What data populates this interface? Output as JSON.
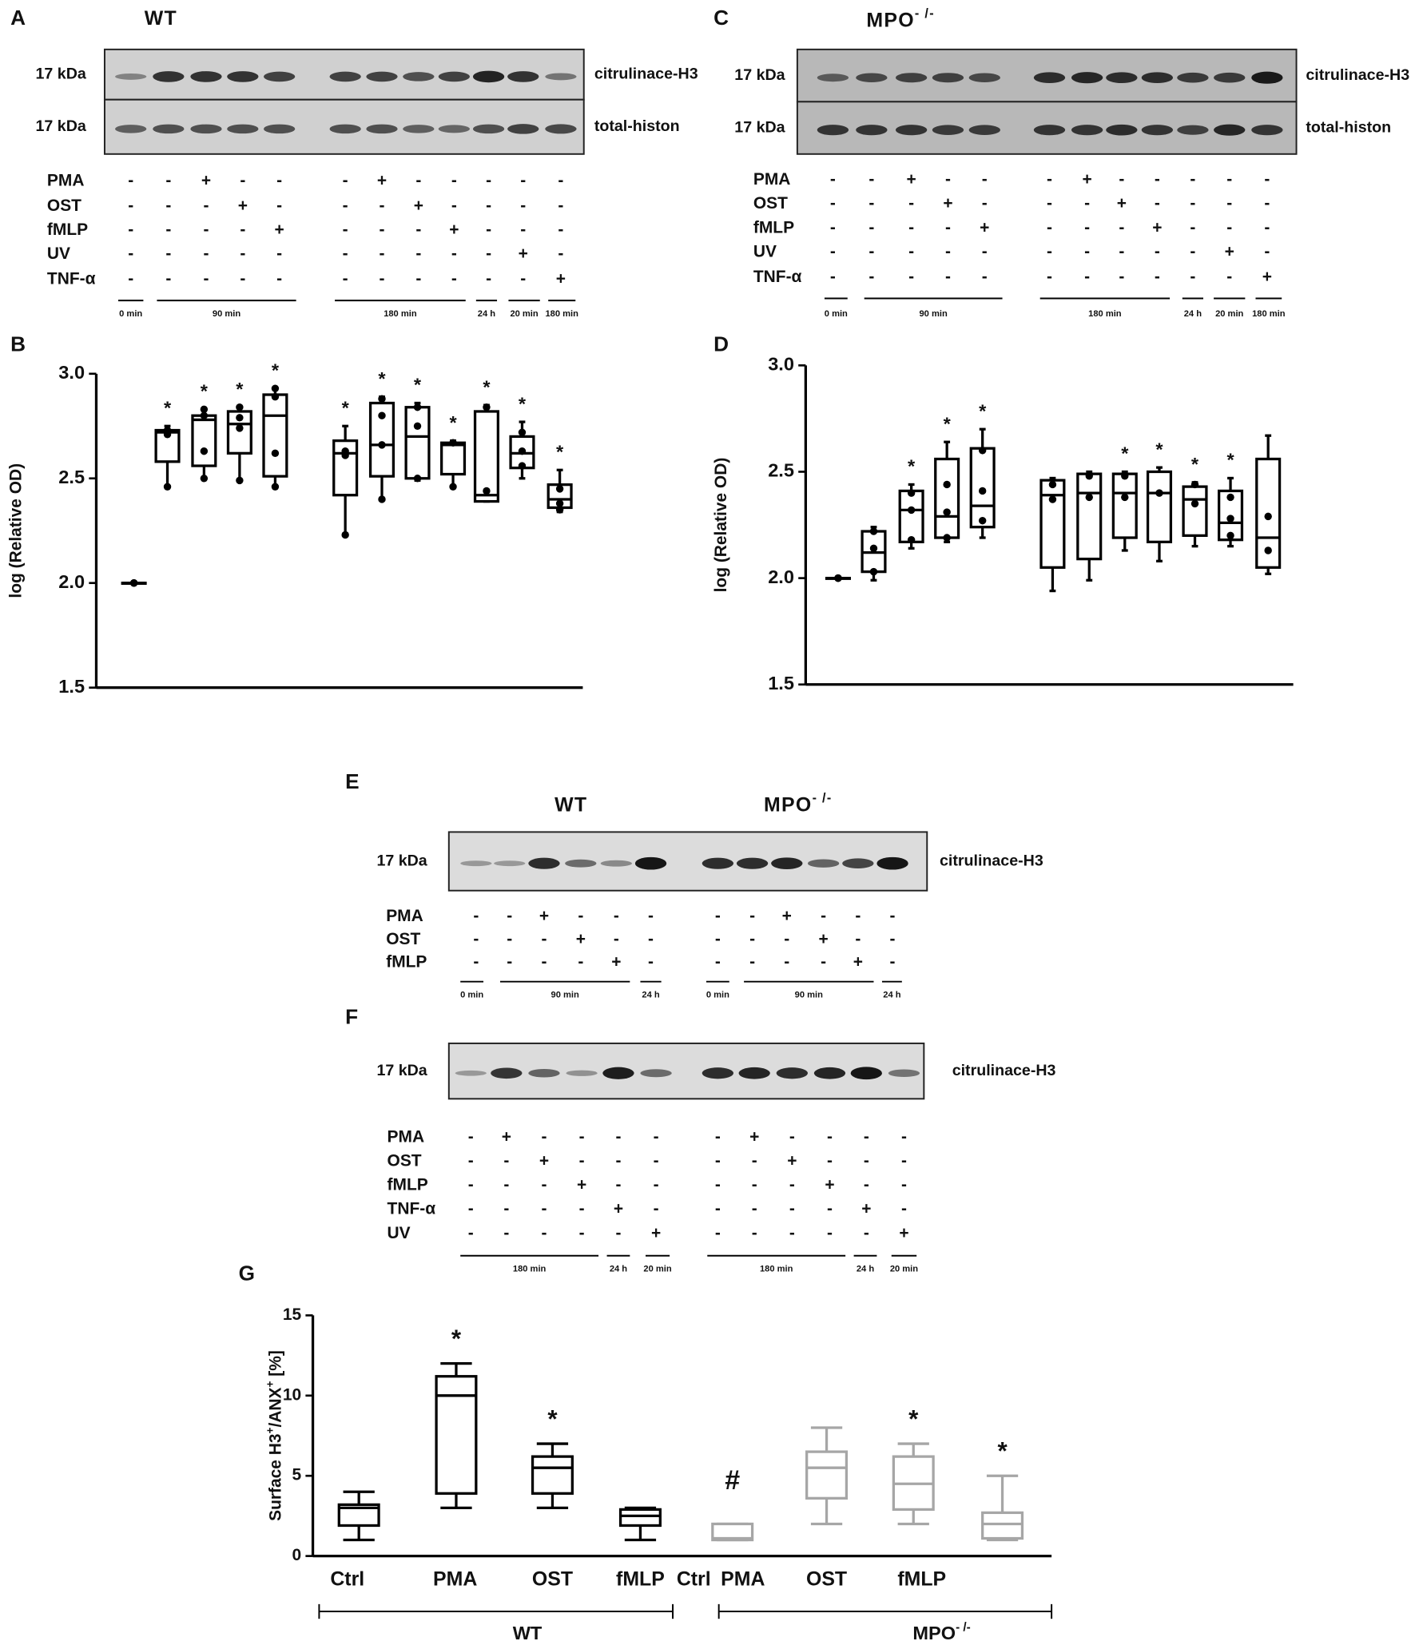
{
  "panels": {
    "A": {
      "letter": "A",
      "titles": [
        {
          "text": "WT"
        }
      ],
      "rows": [
        {
          "kda": "17 kDa",
          "name": "citrulinace-H3"
        },
        {
          "kda": "17 kDa",
          "name": "total-histon"
        }
      ],
      "treatments": [
        {
          "label": "PMA",
          "marks": [
            "-",
            "-",
            "+",
            "-",
            "-",
            "-",
            "+",
            "-",
            "-",
            "-",
            "-",
            "-"
          ]
        },
        {
          "label": "OST",
          "marks": [
            "-",
            "-",
            "-",
            "+",
            "-",
            "-",
            "-",
            "+",
            "-",
            "-",
            "-",
            "-"
          ]
        },
        {
          "label": "fMLP",
          "marks": [
            "-",
            "-",
            "-",
            "-",
            "+",
            "-",
            "-",
            "-",
            "+",
            "-",
            "-",
            "-"
          ]
        },
        {
          "label": "UV",
          "marks": [
            "-",
            "-",
            "-",
            "-",
            "-",
            "-",
            "-",
            "-",
            "-",
            "-",
            "+",
            "-"
          ]
        },
        {
          "label": "TNF-α",
          "marks": [
            "-",
            "-",
            "-",
            "-",
            "-",
            "-",
            "-",
            "-",
            "-",
            "-",
            "-",
            "+"
          ]
        }
      ],
      "times": [
        "0 min",
        "90 min",
        "180 min",
        "24 h",
        "20 min",
        "180 min"
      ]
    },
    "C": {
      "letter": "C",
      "titles": [
        {
          "text": "MPO",
          "sup": "- /-"
        }
      ],
      "rows": [
        {
          "kda": "17 kDa",
          "name": "citrulinace-H3"
        },
        {
          "kda": "17 kDa",
          "name": "total-histon"
        }
      ],
      "treatments": [
        {
          "label": "PMA",
          "marks": [
            "-",
            "-",
            "+",
            "-",
            "-",
            "-",
            "+",
            "-",
            "-",
            "-",
            "-",
            "-"
          ]
        },
        {
          "label": "OST",
          "marks": [
            "-",
            "-",
            "-",
            "+",
            "-",
            "-",
            "-",
            "+",
            "-",
            "-",
            "-",
            "-"
          ]
        },
        {
          "label": "fMLP",
          "marks": [
            "-",
            "-",
            "-",
            "-",
            "+",
            "-",
            "-",
            "-",
            "+",
            "-",
            "-",
            "-"
          ]
        },
        {
          "label": "UV",
          "marks": [
            "-",
            "-",
            "-",
            "-",
            "-",
            "-",
            "-",
            "-",
            "-",
            "-",
            "+",
            "-"
          ]
        },
        {
          "label": "TNF-α",
          "marks": [
            "-",
            "-",
            "-",
            "-",
            "-",
            "-",
            "-",
            "-",
            "-",
            "-",
            "-",
            "+"
          ]
        }
      ],
      "times": [
        "0 min",
        "90 min",
        "180 min",
        "24 h",
        "20 min",
        "180 min"
      ]
    },
    "E": {
      "letter": "E",
      "titles": [
        {
          "text": "WT"
        },
        {
          "text": "MPO",
          "sup": "- /-"
        }
      ],
      "rows": [
        {
          "kda": "17 kDa",
          "name": "citrulinace-H3"
        }
      ],
      "treatments": [
        {
          "label": "PMA",
          "marks": [
            "-",
            "-",
            "+",
            "-",
            "-",
            "-",
            "-",
            "-",
            "+",
            "-",
            "-",
            "-"
          ]
        },
        {
          "label": "OST",
          "marks": [
            "-",
            "-",
            "-",
            "+",
            "-",
            "-",
            "-",
            "-",
            "-",
            "+",
            "-",
            "-"
          ]
        },
        {
          "label": "fMLP",
          "marks": [
            "-",
            "-",
            "-",
            "-",
            "+",
            "-",
            "-",
            "-",
            "-",
            "-",
            "+",
            "-"
          ]
        }
      ],
      "times": [
        "0 min",
        "90 min",
        "24 h",
        "0 min",
        "90 min",
        "24 h"
      ]
    },
    "F": {
      "letter": "F",
      "rows": [
        {
          "kda": "17 kDa",
          "name": "citrulinace-H3"
        }
      ],
      "treatments": [
        {
          "label": "PMA",
          "marks": [
            "-",
            "+",
            "-",
            "-",
            "-",
            "-",
            "-",
            "+",
            "-",
            "-",
            "-",
            "-"
          ]
        },
        {
          "label": "OST",
          "marks": [
            "-",
            "-",
            "+",
            "-",
            "-",
            "-",
            "-",
            "-",
            "+",
            "-",
            "-",
            "-"
          ]
        },
        {
          "label": "fMLP",
          "marks": [
            "-",
            "-",
            "-",
            "+",
            "-",
            "-",
            "-",
            "-",
            "-",
            "+",
            "-",
            "-"
          ]
        },
        {
          "label": "TNF-α",
          "marks": [
            "-",
            "-",
            "-",
            "-",
            "+",
            "-",
            "-",
            "-",
            "-",
            "-",
            "+",
            "-"
          ]
        },
        {
          "label": "UV",
          "marks": [
            "-",
            "-",
            "-",
            "-",
            "-",
            "+",
            "-",
            "-",
            "-",
            "-",
            "-",
            "+"
          ]
        }
      ],
      "times": [
        "180 min",
        "24 h",
        "20 min",
        "180 min",
        "24 h",
        "20 min"
      ]
    }
  },
  "chart_data": [
    {
      "type": "box",
      "panel": "B",
      "ylabel": "log (Relative OD)",
      "ylim": [
        1.5,
        3.0
      ],
      "yticks": [
        1.5,
        {
          "value": 2.0,
          "label": "2.0"
        },
        2.5,
        {
          "value": 3.0,
          "label": "3.0"
        }
      ],
      "categories": [
        null,
        null,
        null,
        null,
        null,
        null,
        null,
        null,
        null,
        null,
        null,
        null
      ],
      "series": [
        {
          "color": "#000000",
          "boxes": [
            {
              "min": 2.0,
              "q1": 2.0,
              "median": 2.0,
              "q3": 2.0,
              "max": 2.0,
              "points": [
                2.0,
                2.0,
                2.0
              ]
            },
            {
              "min": 2.46,
              "q1": 2.58,
              "median": 2.72,
              "q3": 2.73,
              "max": 2.75,
              "points": [
                2.73,
                2.71,
                2.46
              ]
            },
            {
              "min": 2.5,
              "q1": 2.56,
              "median": 2.78,
              "q3": 2.8,
              "max": 2.83,
              "points": [
                2.83,
                2.8,
                2.63,
                2.5
              ]
            },
            {
              "min": 2.49,
              "q1": 2.62,
              "median": 2.76,
              "q3": 2.82,
              "max": 2.84,
              "points": [
                2.84,
                2.79,
                2.74,
                2.49
              ]
            },
            {
              "min": 2.46,
              "q1": 2.51,
              "median": 2.8,
              "q3": 2.9,
              "max": 2.93,
              "points": [
                2.93,
                2.89,
                2.62,
                2.46
              ]
            },
            {
              "min": 2.23,
              "q1": 2.42,
              "median": 2.62,
              "q3": 2.68,
              "max": 2.75,
              "points": [
                2.63,
                2.61,
                2.23
              ]
            },
            {
              "min": 2.4,
              "q1": 2.51,
              "median": 2.66,
              "q3": 2.86,
              "max": 2.89,
              "points": [
                2.88,
                2.8,
                2.66,
                2.4
              ]
            },
            {
              "min": 2.49,
              "q1": 2.5,
              "median": 2.7,
              "q3": 2.84,
              "max": 2.86,
              "points": [
                2.84,
                2.75,
                2.5
              ]
            },
            {
              "min": 2.46,
              "q1": 2.52,
              "median": 2.66,
              "q3": 2.67,
              "max": 2.68,
              "points": [
                2.67,
                2.46
              ]
            },
            {
              "min": 2.39,
              "q1": 2.39,
              "median": 2.42,
              "q3": 2.82,
              "max": 2.85,
              "points": [
                2.84,
                2.44
              ]
            },
            {
              "min": 2.5,
              "q1": 2.55,
              "median": 2.62,
              "q3": 2.7,
              "max": 2.77,
              "points": [
                2.72,
                2.63,
                2.56
              ]
            },
            {
              "min": 2.34,
              "q1": 2.36,
              "median": 2.4,
              "q3": 2.47,
              "max": 2.54,
              "points": [
                2.45,
                2.38,
                2.35
              ]
            }
          ]
        }
      ],
      "annotations": [
        {
          "series": 0,
          "index": 1,
          "text": "*"
        },
        {
          "series": 0,
          "index": 2,
          "text": "*"
        },
        {
          "series": 0,
          "index": 3,
          "text": "*"
        },
        {
          "series": 0,
          "index": 4,
          "text": "*"
        },
        {
          "series": 0,
          "index": 5,
          "text": "*"
        },
        {
          "series": 0,
          "index": 6,
          "text": "*"
        },
        {
          "series": 0,
          "index": 7,
          "text": "*"
        },
        {
          "series": 0,
          "index": 8,
          "text": "*"
        },
        {
          "series": 0,
          "index": 9,
          "text": "*"
        },
        {
          "series": 0,
          "index": 10,
          "text": "*"
        },
        {
          "series": 0,
          "index": 11,
          "text": "*"
        }
      ]
    },
    {
      "type": "box",
      "panel": "D",
      "ylabel": "log (Relative OD)",
      "ylim": [
        1.5,
        3.0
      ],
      "yticks": [
        1.5,
        {
          "value": 2.0,
          "label": "2.0"
        },
        2.5,
        {
          "value": 3.0,
          "label": "3.0"
        }
      ],
      "categories": [
        null,
        null,
        null,
        null,
        null,
        null,
        null,
        null,
        null,
        null,
        null,
        null
      ],
      "series": [
        {
          "color": "#000000",
          "boxes": [
            {
              "min": 2.0,
              "q1": 2.0,
              "median": 2.0,
              "q3": 2.0,
              "max": 2.0,
              "points": [
                2.0,
                2.0,
                2.0
              ]
            },
            {
              "min": 1.99,
              "q1": 2.03,
              "median": 2.12,
              "q3": 2.22,
              "max": 2.24,
              "points": [
                2.22,
                2.14,
                2.03
              ]
            },
            {
              "min": 2.14,
              "q1": 2.17,
              "median": 2.32,
              "q3": 2.41,
              "max": 2.44,
              "points": [
                2.4,
                2.32,
                2.18
              ]
            },
            {
              "min": 2.17,
              "q1": 2.19,
              "median": 2.29,
              "q3": 2.56,
              "max": 2.64,
              "points": [
                2.44,
                2.31,
                2.19
              ]
            },
            {
              "min": 2.19,
              "q1": 2.24,
              "median": 2.34,
              "q3": 2.61,
              "max": 2.7,
              "points": [
                2.6,
                2.41,
                2.27
              ]
            },
            {
              "min": 1.94,
              "q1": 2.05,
              "median": 2.39,
              "q3": 2.46,
              "max": 2.47,
              "points": [
                2.44,
                2.37
              ]
            },
            {
              "min": 1.99,
              "q1": 2.09,
              "median": 2.4,
              "q3": 2.49,
              "max": 2.5,
              "points": [
                2.48,
                2.38
              ]
            },
            {
              "min": 2.13,
              "q1": 2.19,
              "median": 2.4,
              "q3": 2.49,
              "max": 2.5,
              "points": [
                2.48,
                2.38
              ]
            },
            {
              "min": 2.08,
              "q1": 2.17,
              "median": 2.4,
              "q3": 2.5,
              "max": 2.52,
              "points": [
                2.4
              ]
            },
            {
              "min": 2.15,
              "q1": 2.2,
              "median": 2.37,
              "q3": 2.43,
              "max": 2.45,
              "points": [
                2.44,
                2.35
              ]
            },
            {
              "min": 2.15,
              "q1": 2.18,
              "median": 2.26,
              "q3": 2.41,
              "max": 2.47,
              "points": [
                2.38,
                2.28,
                2.2
              ]
            },
            {
              "min": 2.02,
              "q1": 2.05,
              "median": 2.19,
              "q3": 2.56,
              "max": 2.67,
              "points": [
                2.29,
                2.13
              ]
            }
          ]
        }
      ],
      "annotations": [
        {
          "series": 0,
          "index": 2,
          "text": "*"
        },
        {
          "series": 0,
          "index": 3,
          "text": "*"
        },
        {
          "series": 0,
          "index": 4,
          "text": "*"
        },
        {
          "series": 0,
          "index": 7,
          "text": "*"
        },
        {
          "series": 0,
          "index": 8,
          "text": "*"
        },
        {
          "series": 0,
          "index": 9,
          "text": "*"
        },
        {
          "series": 0,
          "index": 10,
          "text": "*"
        }
      ]
    },
    {
      "type": "box",
      "panel": "G",
      "ylabel_parts": [
        "Surface H3",
        "+",
        "/ANX",
        "+",
        " [%]"
      ],
      "ylim": [
        0,
        15
      ],
      "yticks": [
        0,
        5,
        10,
        15
      ],
      "series": [
        {
          "name": "WT",
          "color": "#000000",
          "categories": [
            "Ctrl",
            "PMA",
            "OST",
            "fMLP"
          ],
          "boxes": [
            {
              "min": 1,
              "q1": 1.9,
              "median": 3.0,
              "q3": 3.2,
              "max": 4
            },
            {
              "min": 3,
              "q1": 3.9,
              "median": 10,
              "q3": 11.2,
              "max": 12
            },
            {
              "min": 3,
              "q1": 3.9,
              "median": 5.5,
              "q3": 6.2,
              "max": 7
            },
            {
              "min": 1,
              "q1": 1.9,
              "median": 2.5,
              "q3": 2.9,
              "max": 3
            }
          ]
        },
        {
          "name": "MPO",
          "name_sup": "- /-",
          "color": "#a6a6a6",
          "categories": [
            "Ctrl",
            "PMA",
            "OST",
            "fMLP"
          ],
          "boxes": [
            {
              "min": 1,
              "q1": 1,
              "median": 1.1,
              "q3": 2,
              "max": 2
            },
            {
              "min": 2,
              "q1": 3.6,
              "median": 5.5,
              "q3": 6.5,
              "max": 8
            },
            {
              "min": 2,
              "q1": 2.9,
              "median": 4.5,
              "q3": 6.2,
              "max": 7
            },
            {
              "min": 1,
              "q1": 1.1,
              "median": 2,
              "q3": 2.7,
              "max": 5
            }
          ]
        }
      ],
      "annotations": [
        {
          "series": 0,
          "index": 1,
          "text": "*"
        },
        {
          "series": 0,
          "index": 2,
          "text": "*"
        },
        {
          "series": 1,
          "index": 0,
          "text": "#"
        },
        {
          "series": 1,
          "index": 2,
          "text": "*"
        },
        {
          "series": 1,
          "index": 3,
          "text": "*"
        }
      ]
    }
  ]
}
